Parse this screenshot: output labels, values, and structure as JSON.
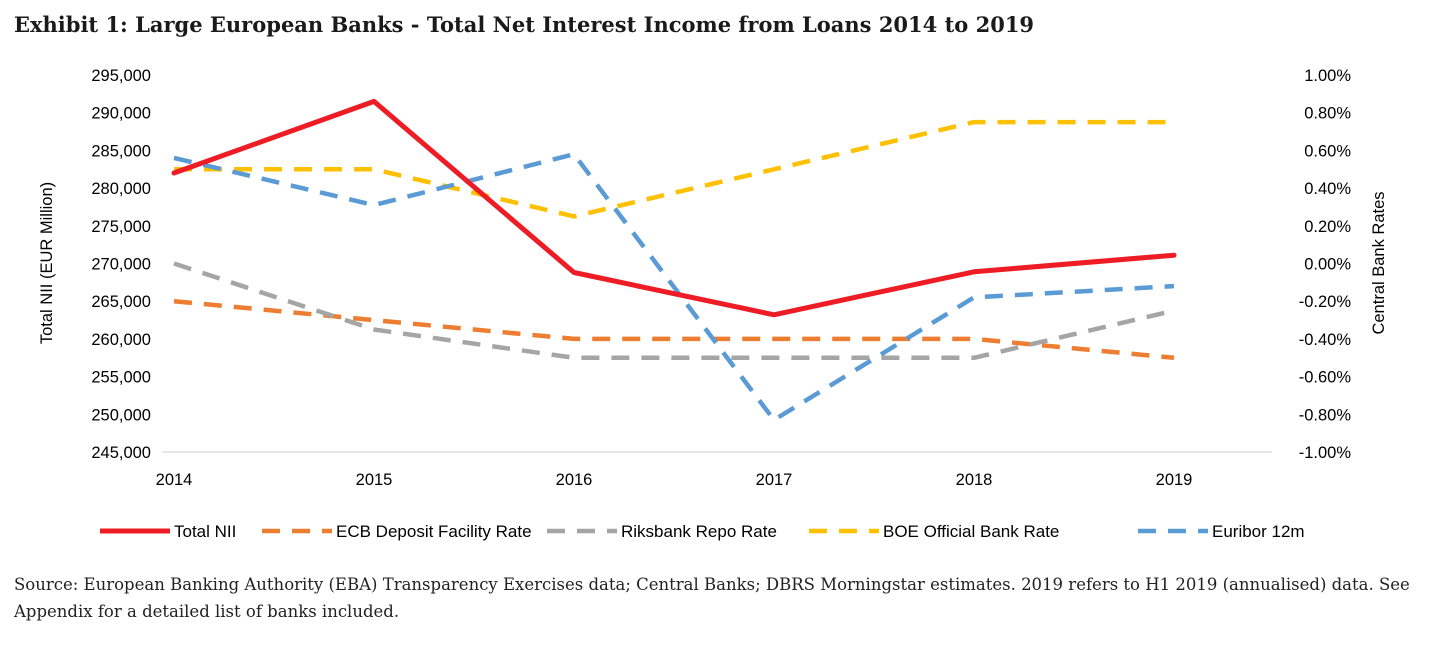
{
  "title": "Exhibit 1: Large European Banks - Total Net Interest Income from Loans 2014 to 2019",
  "source": "Source:  European Banking Authority (EBA) Transparency Exercises data; Central Banks; DBRS Morningstar estimates. 2019 refers to H1 2019 (annualised) data. See Appendix for a detailed list of banks included.",
  "chart_data": {
    "type": "line",
    "x": [
      "2014",
      "2015",
      "2016",
      "2017",
      "2018",
      "2019"
    ],
    "y_left": {
      "label": "Total NII (EUR Million)",
      "range": [
        245000,
        295000
      ],
      "ticks": [
        "245,000",
        "250,000",
        "255,000",
        "260,000",
        "265,000",
        "270,000",
        "275,000",
        "280,000",
        "285,000",
        "290,000",
        "295,000"
      ]
    },
    "y_right": {
      "label": "Central Bank Rates",
      "range": [
        -1.0,
        1.0
      ],
      "ticks": [
        "-1.00%",
        "-0.80%",
        "-0.60%",
        "-0.40%",
        "-0.20%",
        "0.00%",
        "0.20%",
        "0.40%",
        "0.60%",
        "0.80%",
        "1.00%"
      ]
    },
    "grid": false,
    "legend_position": "bottom",
    "series": [
      {
        "name": "Total NII",
        "axis": "left",
        "style": "solid",
        "color": "#ee1c25",
        "values": [
          282000,
          291500,
          268800,
          263200,
          268900,
          271100
        ]
      },
      {
        "name": "ECB Deposit Facility Rate",
        "axis": "right",
        "style": "dashed",
        "color": "#ed7d31",
        "values": [
          -0.2,
          -0.3,
          -0.4,
          -0.4,
          -0.4,
          -0.5
        ]
      },
      {
        "name": "Riksbank Repo Rate",
        "axis": "right",
        "style": "dashed",
        "color": "#a5a5a5",
        "values": [
          0.0,
          -0.35,
          -0.5,
          -0.5,
          -0.5,
          -0.25
        ]
      },
      {
        "name": "BOE Official Bank Rate",
        "axis": "right",
        "style": "dashed",
        "color": "#ffc000",
        "values": [
          0.5,
          0.5,
          0.25,
          0.5,
          0.75,
          0.75
        ]
      },
      {
        "name": "Euribor 12m",
        "axis": "right",
        "style": "dashed",
        "color": "#5b9bd5",
        "values": [
          0.56,
          0.31,
          0.58,
          -0.83,
          -0.18,
          -0.12
        ]
      }
    ]
  }
}
